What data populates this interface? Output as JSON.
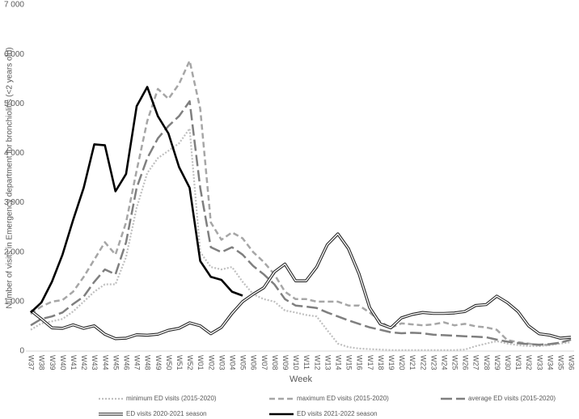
{
  "chart_data": {
    "type": "line",
    "y_axis_label": "Number of visits in Emergency department for bronchiolitis (<2 years old)",
    "x_axis_label": "Week",
    "categories": [
      "W37",
      "W38",
      "W39",
      "W40",
      "W41",
      "W42",
      "W43",
      "W44",
      "W45",
      "W46",
      "W47",
      "W48",
      "W49",
      "W50",
      "W51",
      "W52",
      "W01",
      "W02",
      "W03",
      "W04",
      "W05",
      "W06",
      "W07",
      "W08",
      "W09",
      "W10",
      "W11",
      "W12",
      "W13",
      "W14",
      "W15",
      "W16",
      "W17",
      "W18",
      "W19",
      "W20",
      "W21",
      "W22",
      "W23",
      "W24",
      "W25",
      "W26",
      "W27",
      "W28",
      "W29",
      "W30",
      "W31",
      "W32",
      "W33",
      "W34",
      "W35",
      "W36"
    ],
    "ylim": [
      0,
      7000
    ],
    "yticks": [
      0,
      {
        "value": 1000,
        "label": "1 000"
      },
      {
        "value": 2000,
        "label": "2 000"
      },
      {
        "value": 3000,
        "label": "3 000"
      },
      {
        "value": 4000,
        "label": "4 000"
      },
      {
        "value": 5000,
        "label": "5 000"
      },
      {
        "value": 6000,
        "label": "6 000"
      },
      {
        "value": 7000,
        "label": "7 000"
      }
    ],
    "grid": false,
    "legend": "bottom",
    "series": [
      {
        "name": "minimum ED visits (2015-2020)",
        "color": "#bfbfbf",
        "style": "dotted",
        "values": [
          430,
          560,
          600,
          650,
          800,
          1000,
          1200,
          1350,
          1350,
          1900,
          2900,
          3600,
          3900,
          4050,
          4200,
          4500,
          2000,
          1700,
          1650,
          1700,
          1400,
          1150,
          1050,
          1000,
          820,
          780,
          730,
          700,
          420,
          150,
          80,
          50,
          40,
          30,
          20,
          20,
          20,
          20,
          20,
          20,
          20,
          30,
          100,
          150,
          200,
          150,
          120,
          100,
          100,
          120,
          150,
          180
        ]
      },
      {
        "name": "maximum ED visits (2015-2020)",
        "color": "#a6a6a6",
        "style": "dashed",
        "values": [
          750,
          900,
          1000,
          1030,
          1200,
          1500,
          1850,
          2200,
          1950,
          2600,
          3650,
          4650,
          5300,
          5100,
          5400,
          5870,
          4900,
          2600,
          2250,
          2400,
          2280,
          2000,
          1800,
          1550,
          1200,
          1050,
          1050,
          1000,
          1000,
          1000,
          920,
          920,
          780,
          600,
          470,
          560,
          540,
          520,
          540,
          580,
          520,
          550,
          500,
          480,
          430,
          220,
          180,
          150,
          120,
          130,
          170,
          230
        ]
      },
      {
        "name": "average ED visits (2015-2020)",
        "color": "#7f7f7f",
        "style": "longdash",
        "values": [
          520,
          650,
          700,
          780,
          950,
          1100,
          1400,
          1650,
          1550,
          2200,
          3300,
          3900,
          4300,
          4550,
          4750,
          5050,
          3300,
          2100,
          2000,
          2100,
          1950,
          1720,
          1550,
          1350,
          1050,
          920,
          900,
          870,
          780,
          700,
          620,
          550,
          480,
          430,
          380,
          360,
          370,
          360,
          330,
          320,
          310,
          300,
          290,
          280,
          230,
          190,
          160,
          140,
          130,
          140,
          170,
          230
        ]
      },
      {
        "name": "ED visits 2020-2021 season",
        "color": "#262626",
        "style": "double",
        "values": [
          820,
          650,
          470,
          460,
          530,
          460,
          510,
          340,
          250,
          260,
          330,
          320,
          340,
          420,
          460,
          570,
          510,
          350,
          480,
          760,
          1000,
          1150,
          1280,
          1600,
          1760,
          1420,
          1420,
          1700,
          2150,
          2370,
          2070,
          1560,
          880,
          550,
          470,
          670,
          740,
          780,
          760,
          760,
          770,
          800,
          920,
          940,
          1110,
          980,
          800,
          510,
          350,
          320,
          260,
          280
        ]
      },
      {
        "name": "ED visits 2021-2022 season",
        "color": "#000000",
        "style": "solid",
        "values": [
          780,
          980,
          1400,
          1950,
          2650,
          3300,
          4180,
          4160,
          3230,
          3580,
          4950,
          5340,
          4750,
          4400,
          3720,
          3300,
          1820,
          1500,
          1440,
          1200,
          1120,
          null,
          null,
          null,
          null,
          null,
          null,
          null,
          null,
          null,
          null,
          null,
          null,
          null,
          null,
          null,
          null,
          null,
          null,
          null,
          null,
          null,
          null,
          null,
          null,
          null,
          null,
          null,
          null,
          null,
          null,
          null
        ]
      }
    ]
  }
}
